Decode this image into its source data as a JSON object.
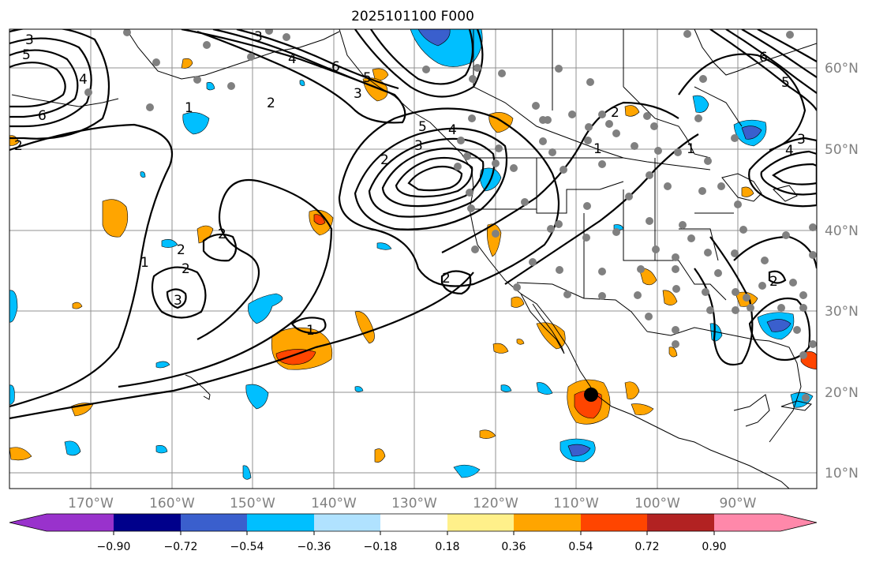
{
  "title": "2025101100 F000",
  "lat_labels": [
    "60°N",
    "50°N",
    "40°N",
    "30°N",
    "20°N",
    "10°N"
  ],
  "lon_labels": [
    "170°W",
    "160°W",
    "150°W",
    "140°W",
    "130°W",
    "120°W",
    "110°W",
    "100°W",
    "90°W"
  ],
  "colorbar": {
    "ticks": [
      "−0.90",
      "−0.72",
      "−0.54",
      "−0.36",
      "−0.18",
      "0.18",
      "0.36",
      "0.54",
      "0.72",
      "0.90"
    ],
    "colors": [
      "#9932cc",
      "#00008b",
      "#3a5fcd",
      "#00bfff",
      "#b0e2ff",
      "#ffffff",
      "#fff08a",
      "#ffa500",
      "#ff4500",
      "#b22222",
      "#ff88aa"
    ]
  },
  "contour_labels": [
    "3",
    "5",
    "4",
    "6",
    "2",
    "1",
    "2",
    "3",
    "4",
    "6",
    "5",
    "3",
    "2",
    "4",
    "5",
    "3",
    "2",
    "1",
    "2",
    "2",
    "2",
    "3",
    "1",
    "2",
    "1",
    "1",
    "2",
    "3",
    "4",
    "5",
    "6"
  ],
  "colors": {
    "grid": "#909090",
    "positive_light": "#ffa500",
    "positive_strong": "#ff4500",
    "negative_light": "#00bfff",
    "negative_strong": "#3a5fcd",
    "station": "#808080"
  }
}
